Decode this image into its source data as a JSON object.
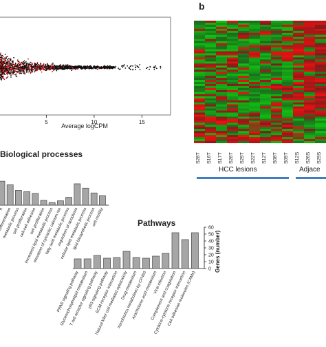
{
  "ma_plot": {
    "xlabel": "Average logCPM",
    "x_ticks": [
      5,
      10,
      15
    ],
    "xlim": [
      0,
      18
    ]
  },
  "heatmap": {
    "panel_letter": "b",
    "columns": [
      "S28T",
      "S16T",
      "S17T",
      "S26T",
      "S29T",
      "S22T",
      "S12T",
      "S08T",
      "S09T",
      "S12S",
      "S26S",
      "S29S"
    ],
    "group_labels": [
      "HCC lesions",
      "Adjace"
    ],
    "colors": {
      "red": "#d42020",
      "green": "#1f8a1f",
      "group_line": "#3f7fbf"
    }
  },
  "bp_chart": {
    "title": "Biological processes",
    "bar_color": "#a6a6a6",
    "chart_data": {
      "type": "bar",
      "categories": [
        "n",
        "differentiation",
        "metabolic process",
        "cell proliferation",
        "cell-cell adhesion",
        "cell proliferation",
        "increased lipid metabolic process",
        "elevation of cytosolic calcium ion",
        "fatty acid metabolic process",
        "regulation of apoptosis",
        "cellular lipid metabolic process",
        "lipid biosynthetic process",
        "cell motility"
      ],
      "values": [
        55,
        47,
        34,
        31,
        27,
        11,
        6,
        10,
        18,
        49,
        39,
        28,
        22
      ],
      "ylim": [
        0,
        60
      ]
    }
  },
  "pathways_chart": {
    "title": "Pathways",
    "ylabel": "Genes (number)",
    "y_ticks": [
      0,
      10,
      20,
      30,
      40,
      50,
      60
    ],
    "bar_color": "#a6a6a6",
    "chart_data": {
      "type": "bar",
      "categories": [
        "PPAR signaling pathway",
        "Glycerophospholipid metabolism",
        "T cell receptor signaling pathway",
        "p53 signaling pathway",
        "ECM-receptor interaction",
        "Natural killer cell mediated cytotoxicity",
        "Drug metabolism",
        "Xenobiotics metabolism by CP450",
        "Arachidonic acid metabolism",
        "Viral infection",
        "Complement and coagulation",
        "Cytokine-cytokine receptor interaction",
        "Cell adhesion molecules (CAMs)"
      ],
      "values": [
        14,
        14,
        19,
        15,
        16,
        25,
        16,
        15,
        18,
        22,
        52,
        42,
        52
      ],
      "ylim": [
        0,
        60
      ]
    }
  }
}
